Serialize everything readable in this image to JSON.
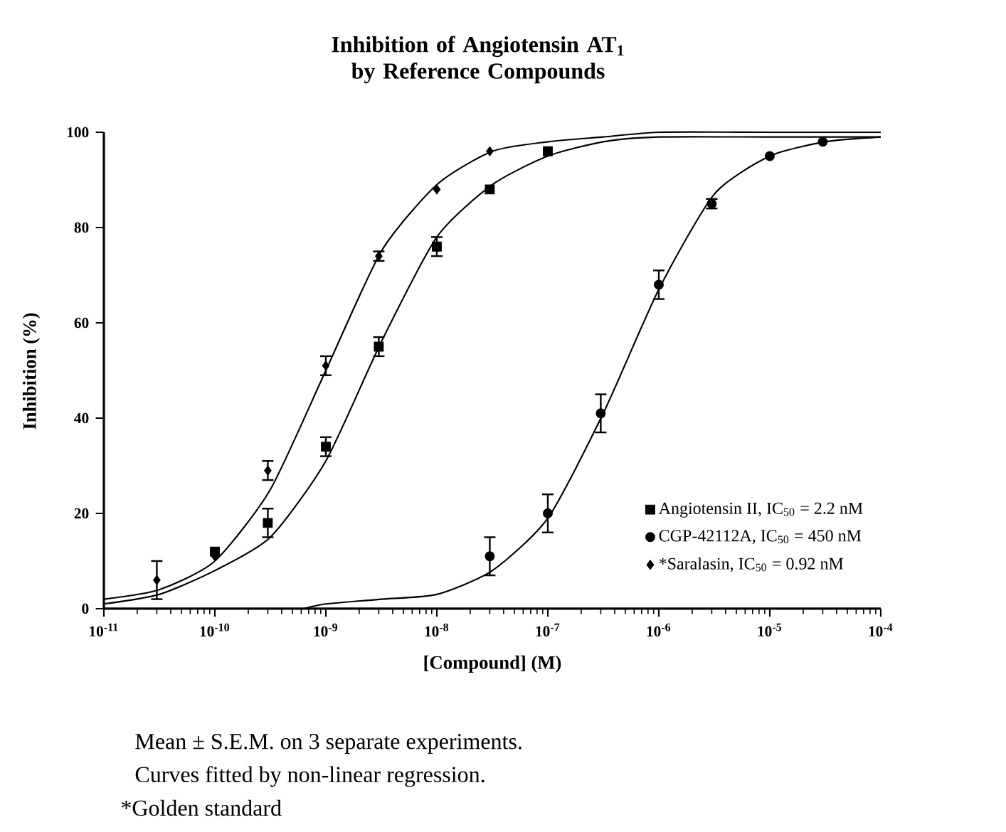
{
  "chart_data": {
    "type": "scatter",
    "title": "Inhibition of Angiotensin AT$_{1}$ by Reference Compounds",
    "xlabel": "[Compound] (M)",
    "ylabel": "Inhibition (%)",
    "log": "x",
    "legend": "bottom right",
    "xlim": [
      1e-11,
      0.0001
    ],
    "ylim": [
      0,
      100
    ],
    "xticks": [
      {
        "value": 1e-11,
        "label": "10$^{-11}$"
      },
      {
        "value": 1e-10,
        "label": "10$^{-10}$"
      },
      {
        "value": 1e-09,
        "label": "10$^{-9}$"
      },
      {
        "value": 1e-08,
        "label": "10$^{-8}$"
      },
      {
        "value": 1e-07,
        "label": "10$^{-7}$"
      },
      {
        "value": 1e-06,
        "label": "10$^{-6}$"
      },
      {
        "value": 1e-05,
        "label": "10$^{-5}$"
      },
      {
        "value": 0.0001,
        "label": "10$^{-4}$"
      }
    ],
    "yticks": [
      0,
      20,
      40,
      60,
      80,
      100
    ],
    "series": [
      {
        "name": "Angiotensin II, IC$_{50}$ = 2.2 nM",
        "marker": "square",
        "color": "#000000",
        "x": [
          1e-10,
          3e-10,
          1e-09,
          3e-09,
          1e-08,
          3e-08,
          1e-07
        ],
        "values": [
          12,
          18,
          34,
          55,
          76,
          88,
          96
        ],
        "errors": [
          null,
          3,
          2,
          2,
          2,
          null,
          null
        ]
      },
      {
        "name": "CGP-42112A, IC$_{50}$ = 450 nM",
        "marker": "circle",
        "color": "#000000",
        "x": [
          3e-08,
          1e-07,
          3e-07,
          1e-06,
          3e-06,
          1e-05,
          3e-05
        ],
        "values": [
          11,
          20,
          41,
          68,
          85,
          95,
          98
        ],
        "errors": [
          4,
          4,
          4,
          3,
          1,
          null,
          null
        ]
      },
      {
        "name": "*Saralasin, IC$_{50}$ = 0.92 nM",
        "marker": "diamond",
        "color": "#000000",
        "x": [
          3e-11,
          1e-10,
          3e-10,
          1e-09,
          3e-09,
          1e-08,
          3e-08
        ],
        "values": [
          6,
          11,
          29,
          51,
          74,
          88,
          96
        ],
        "errors": [
          4,
          null,
          2,
          2,
          1,
          null,
          null
        ]
      },
      {
        "type": "line",
        "marker": "none",
        "color": "#000000",
        "x": [
          1e-11,
          3.16e-11,
          1e-10,
          3.16e-10,
          1e-09,
          3.16e-09,
          1e-08,
          3.16e-08,
          1e-07,
          3.16e-07,
          1e-06,
          1e-05,
          0.0001
        ],
        "values": [
          1,
          3,
          8,
          15,
          31,
          56,
          78,
          89,
          95,
          98,
          99,
          99,
          99
        ]
      },
      {
        "type": "line",
        "marker": "none",
        "color": "#000000",
        "x": [
          6.3e-10,
          1e-09,
          3.16e-09,
          1e-08,
          3.16e-08,
          1e-07,
          3.16e-07,
          1e-06,
          3.16e-06,
          1e-05,
          3.16e-05,
          0.0001
        ],
        "values": [
          0,
          1,
          2,
          3,
          8,
          19,
          41,
          67,
          87,
          95,
          98,
          99
        ]
      },
      {
        "type": "line",
        "marker": "none",
        "color": "#000000",
        "x": [
          1e-11,
          3.16e-11,
          1e-10,
          3.16e-10,
          1e-09,
          3.16e-09,
          1e-08,
          3.16e-08,
          1e-07,
          3.16e-07,
          1e-06,
          1e-05,
          0.0001
        ],
        "values": [
          2,
          4,
          10,
          25,
          50,
          75,
          89,
          96,
          98,
          99,
          100,
          100,
          100
        ]
      }
    ],
    "annotations": [
      "Mean ± S.E.M. on 3 separate experiments.",
      "Curves fitted by non-linear regression.",
      "*Golden standard"
    ]
  }
}
